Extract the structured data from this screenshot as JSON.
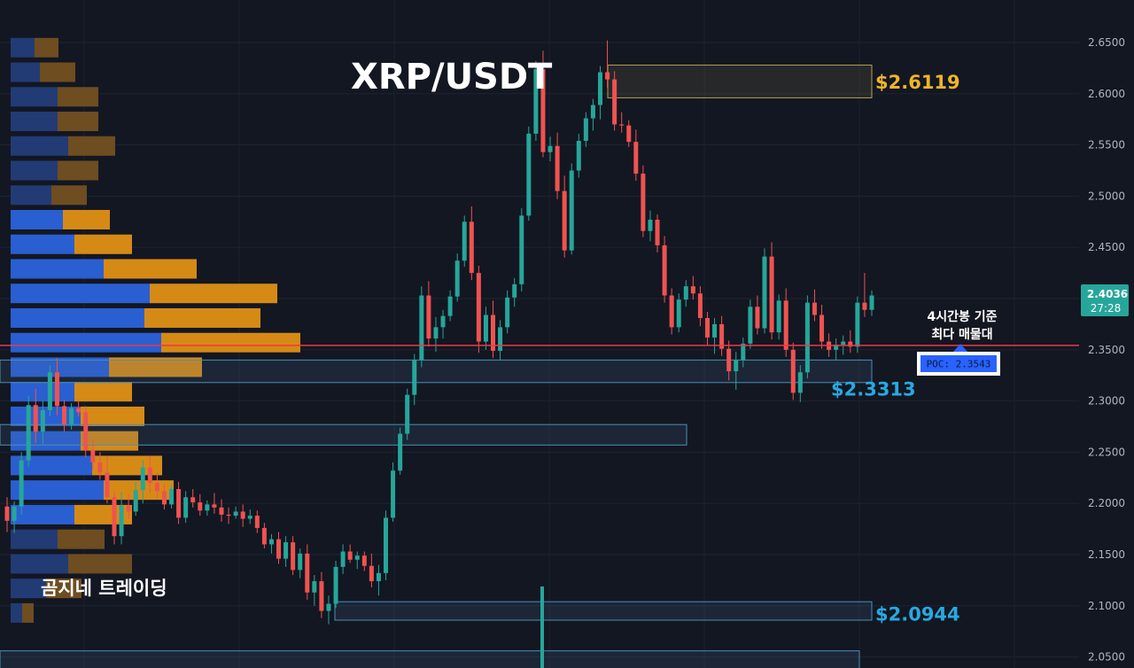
{
  "chart_data": {
    "type": "candlestick",
    "title": "XRP/USDT",
    "watermark": "곰지네 트레이딩",
    "ylim": [
      2.04,
      2.66
    ],
    "yticks": [
      "2.6500",
      "2.6000",
      "2.5500",
      "2.5000",
      "2.4500",
      "2.4000",
      "2.3500",
      "2.3000",
      "2.2500",
      "2.2000",
      "2.1500",
      "2.1000",
      "2.0500"
    ],
    "current_price": {
      "price": "2.4036",
      "countdown": "27:28",
      "value": 2.4036,
      "color": "#26a69a"
    },
    "poc": {
      "label": "POC: 2.3543",
      "value": 2.3543,
      "note_line1": "4시간봉 기준",
      "note_line2": "최다 매물대",
      "line_color": "#f23645"
    },
    "annotations": [
      {
        "label": "$2.6119",
        "value": 2.6119,
        "color": "#f0b429"
      },
      {
        "label": "$2.3313",
        "value": 2.3313,
        "color": "#29a8e0"
      },
      {
        "label": "$2.0944",
        "value": 2.0944,
        "color": "#29a8e0"
      }
    ],
    "zones": [
      {
        "top": 2.628,
        "bottom": 2.596,
        "color": "#b8a14a",
        "fill": "rgba(150,140,90,0.15)"
      },
      {
        "top": 2.34,
        "bottom": 2.318,
        "color": "#4a90b8",
        "fill": "rgba(70,110,150,0.18)"
      },
      {
        "top": 2.277,
        "bottom": 2.257,
        "color": "#4a90b8",
        "fill": "rgba(70,110,150,0.18)"
      },
      {
        "top": 2.104,
        "bottom": 2.086,
        "color": "#4a90b8",
        "fill": "rgba(70,110,150,0.18)"
      },
      {
        "top": 2.056,
        "bottom": 2.036,
        "color": "#4a90b8",
        "fill": "rgba(70,110,150,0.18)"
      }
    ],
    "volume_profile": [
      {
        "price": 2.645,
        "buy": 27,
        "sell": 27,
        "in_value_area": false
      },
      {
        "price": 2.621,
        "buy": 33,
        "sell": 40,
        "in_value_area": false
      },
      {
        "price": 2.597,
        "buy": 53,
        "sell": 46,
        "in_value_area": false
      },
      {
        "price": 2.573,
        "buy": 53,
        "sell": 46,
        "in_value_area": false
      },
      {
        "price": 2.549,
        "buy": 65,
        "sell": 53,
        "in_value_area": false
      },
      {
        "price": 2.525,
        "buy": 53,
        "sell": 46,
        "in_value_area": false
      },
      {
        "price": 2.501,
        "buy": 46,
        "sell": 40,
        "in_value_area": false
      },
      {
        "price": 2.477,
        "buy": 59,
        "sell": 53,
        "in_value_area": true
      },
      {
        "price": 2.453,
        "buy": 72,
        "sell": 65,
        "in_value_area": true
      },
      {
        "price": 2.429,
        "buy": 105,
        "sell": 105,
        "in_value_area": true
      },
      {
        "price": 2.405,
        "buy": 157,
        "sell": 144,
        "in_value_area": true
      },
      {
        "price": 2.381,
        "buy": 151,
        "sell": 131,
        "in_value_area": true
      },
      {
        "price": 2.357,
        "buy": 170,
        "sell": 157,
        "in_value_area": true
      },
      {
        "price": 2.333,
        "buy": 111,
        "sell": 105,
        "in_value_area": true
      },
      {
        "price": 2.309,
        "buy": 72,
        "sell": 65,
        "in_value_area": true
      },
      {
        "price": 2.285,
        "buy": 79,
        "sell": 72,
        "in_value_area": true
      },
      {
        "price": 2.261,
        "buy": 79,
        "sell": 65,
        "in_value_area": true
      },
      {
        "price": 2.237,
        "buy": 92,
        "sell": 79,
        "in_value_area": true
      },
      {
        "price": 2.213,
        "buy": 105,
        "sell": 79,
        "in_value_area": true
      },
      {
        "price": 2.189,
        "buy": 72,
        "sell": 65,
        "in_value_area": true
      },
      {
        "price": 2.165,
        "buy": 53,
        "sell": 53,
        "in_value_area": false
      },
      {
        "price": 2.141,
        "buy": 65,
        "sell": 72,
        "in_value_area": false
      },
      {
        "price": 2.117,
        "buy": 40,
        "sell": 40,
        "in_value_area": false
      },
      {
        "price": 2.093,
        "buy": 13,
        "sell": 13,
        "in_value_area": false
      }
    ],
    "candles": [
      [
        2.197,
        2.206,
        2.172,
        2.183
      ],
      [
        2.183,
        2.202,
        2.171,
        2.197
      ],
      [
        2.197,
        2.25,
        2.189,
        2.242
      ],
      [
        2.242,
        2.305,
        2.236,
        2.296
      ],
      [
        2.296,
        2.312,
        2.259,
        2.27
      ],
      [
        2.27,
        2.3,
        2.258,
        2.291
      ],
      [
        2.291,
        2.335,
        2.285,
        2.328
      ],
      [
        2.328,
        2.342,
        2.286,
        2.295
      ],
      [
        2.295,
        2.301,
        2.27,
        2.277
      ],
      [
        2.277,
        2.298,
        2.272,
        2.293
      ],
      [
        2.293,
        2.301,
        2.285,
        2.289
      ],
      [
        2.289,
        2.295,
        2.245,
        2.252
      ],
      [
        2.252,
        2.262,
        2.232,
        2.24
      ],
      [
        2.24,
        2.25,
        2.223,
        2.23
      ],
      [
        2.23,
        2.246,
        2.2,
        2.206
      ],
      [
        2.206,
        2.212,
        2.16,
        2.168
      ],
      [
        2.168,
        2.211,
        2.16,
        2.198
      ],
      [
        2.198,
        2.209,
        2.185,
        2.192
      ],
      [
        2.192,
        2.221,
        2.188,
        2.213
      ],
      [
        2.213,
        2.242,
        2.2,
        2.235
      ],
      [
        2.235,
        2.246,
        2.21,
        2.22
      ],
      [
        2.22,
        2.23,
        2.206,
        2.212
      ],
      [
        2.212,
        2.219,
        2.194,
        2.199
      ],
      [
        2.199,
        2.218,
        2.195,
        2.214
      ],
      [
        2.214,
        2.221,
        2.18,
        2.186
      ],
      [
        2.186,
        2.212,
        2.181,
        2.206
      ],
      [
        2.206,
        2.214,
        2.196,
        2.201
      ],
      [
        2.201,
        2.209,
        2.188,
        2.193
      ],
      [
        2.193,
        2.203,
        2.188,
        2.199
      ],
      [
        2.199,
        2.21,
        2.19,
        2.196
      ],
      [
        2.196,
        2.204,
        2.182,
        2.189
      ],
      [
        2.189,
        2.196,
        2.18,
        2.188
      ],
      [
        2.188,
        2.197,
        2.185,
        2.192
      ],
      [
        2.192,
        2.199,
        2.177,
        2.185
      ],
      [
        2.185,
        2.194,
        2.18,
        2.188
      ],
      [
        2.188,
        2.193,
        2.171,
        2.176
      ],
      [
        2.176,
        2.181,
        2.156,
        2.16
      ],
      [
        2.16,
        2.17,
        2.151,
        2.165
      ],
      [
        2.165,
        2.172,
        2.141,
        2.146
      ],
      [
        2.146,
        2.168,
        2.138,
        2.162
      ],
      [
        2.162,
        2.168,
        2.13,
        2.135
      ],
      [
        2.135,
        2.156,
        2.127,
        2.151
      ],
      [
        2.151,
        2.16,
        2.106,
        2.113
      ],
      [
        2.113,
        2.13,
        2.1,
        2.124
      ],
      [
        2.124,
        2.133,
        2.088,
        2.095
      ],
      [
        2.095,
        2.11,
        2.082,
        2.102
      ],
      [
        2.102,
        2.144,
        2.098,
        2.138
      ],
      [
        2.138,
        2.16,
        2.131,
        2.153
      ],
      [
        2.153,
        2.16,
        2.142,
        2.145
      ],
      [
        2.145,
        2.153,
        2.136,
        2.149
      ],
      [
        2.149,
        2.153,
        2.134,
        2.139
      ],
      [
        2.139,
        2.151,
        2.118,
        2.124
      ],
      [
        2.124,
        2.14,
        2.11,
        2.132
      ],
      [
        2.132,
        2.193,
        2.125,
        2.186
      ],
      [
        2.186,
        2.24,
        2.182,
        2.232
      ],
      [
        2.232,
        2.274,
        2.228,
        2.268
      ],
      [
        2.268,
        2.312,
        2.262,
        2.306
      ],
      [
        2.306,
        2.346,
        2.296,
        2.34
      ],
      [
        2.34,
        2.412,
        2.333,
        2.403
      ],
      [
        2.403,
        2.417,
        2.353,
        2.361
      ],
      [
        2.361,
        2.382,
        2.348,
        2.372
      ],
      [
        2.372,
        2.389,
        2.361,
        2.383
      ],
      [
        2.383,
        2.408,
        2.378,
        2.402
      ],
      [
        2.402,
        2.444,
        2.397,
        2.437
      ],
      [
        2.437,
        2.481,
        2.431,
        2.475
      ],
      [
        2.475,
        2.49,
        2.418,
        2.425
      ],
      [
        2.425,
        2.432,
        2.347,
        2.358
      ],
      [
        2.358,
        2.392,
        2.35,
        2.384
      ],
      [
        2.384,
        2.398,
        2.342,
        2.349
      ],
      [
        2.349,
        2.379,
        2.34,
        2.372
      ],
      [
        2.372,
        2.408,
        2.366,
        2.401
      ],
      [
        2.401,
        2.42,
        2.392,
        2.414
      ],
      [
        2.414,
        2.488,
        2.407,
        2.481
      ],
      [
        2.481,
        2.568,
        2.476,
        2.561
      ],
      [
        2.561,
        2.632,
        2.554,
        2.624
      ],
      [
        2.624,
        2.642,
        2.538,
        2.543
      ],
      [
        2.543,
        2.558,
        2.534,
        2.549
      ],
      [
        2.549,
        2.562,
        2.497,
        2.505
      ],
      [
        2.505,
        2.52,
        2.44,
        2.447
      ],
      [
        2.447,
        2.532,
        2.443,
        2.525
      ],
      [
        2.525,
        2.561,
        2.518,
        2.554
      ],
      [
        2.554,
        2.582,
        2.548,
        2.576
      ],
      [
        2.576,
        2.595,
        2.564,
        2.589
      ],
      [
        2.589,
        2.627,
        2.575,
        2.621
      ],
      [
        2.621,
        2.652,
        2.606,
        2.614
      ],
      [
        2.614,
        2.622,
        2.564,
        2.57
      ],
      [
        2.57,
        2.582,
        2.562,
        2.569
      ],
      [
        2.569,
        2.574,
        2.548,
        2.553
      ],
      [
        2.553,
        2.565,
        2.515,
        2.522
      ],
      [
        2.522,
        2.53,
        2.46,
        2.466
      ],
      [
        2.466,
        2.486,
        2.456,
        2.477
      ],
      [
        2.477,
        2.482,
        2.445,
        2.452
      ],
      [
        2.452,
        2.461,
        2.396,
        2.403
      ],
      [
        2.403,
        2.41,
        2.365,
        2.372
      ],
      [
        2.372,
        2.405,
        2.367,
        2.399
      ],
      [
        2.399,
        2.418,
        2.392,
        2.412
      ],
      [
        2.412,
        2.422,
        2.399,
        2.405
      ],
      [
        2.405,
        2.412,
        2.373,
        2.381
      ],
      [
        2.381,
        2.387,
        2.355,
        2.362
      ],
      [
        2.362,
        2.381,
        2.346,
        2.375
      ],
      [
        2.375,
        2.383,
        2.344,
        2.351
      ],
      [
        2.351,
        2.359,
        2.32,
        2.329
      ],
      [
        2.329,
        2.348,
        2.311,
        2.34
      ],
      [
        2.34,
        2.362,
        2.333,
        2.356
      ],
      [
        2.356,
        2.399,
        2.351,
        2.392
      ],
      [
        2.392,
        2.403,
        2.365,
        2.371
      ],
      [
        2.371,
        2.449,
        2.366,
        2.441
      ],
      [
        2.441,
        2.455,
        2.36,
        2.367
      ],
      [
        2.367,
        2.404,
        2.36,
        2.398
      ],
      [
        2.398,
        2.41,
        2.343,
        2.35
      ],
      [
        2.35,
        2.357,
        2.301,
        2.308
      ],
      [
        2.308,
        2.335,
        2.299,
        2.328
      ],
      [
        2.328,
        2.403,
        2.322,
        2.396
      ],
      [
        2.396,
        2.409,
        2.378,
        2.384
      ],
      [
        2.384,
        2.394,
        2.351,
        2.358
      ],
      [
        2.358,
        2.366,
        2.343,
        2.35
      ],
      [
        2.35,
        2.361,
        2.34,
        2.355
      ],
      [
        2.355,
        2.364,
        2.345,
        2.358
      ],
      [
        2.358,
        2.369,
        2.347,
        2.353
      ],
      [
        2.353,
        2.402,
        2.347,
        2.396
      ],
      [
        2.396,
        2.425,
        2.382,
        2.389
      ],
      [
        2.389,
        2.408,
        2.383,
        2.403
      ]
    ]
  }
}
